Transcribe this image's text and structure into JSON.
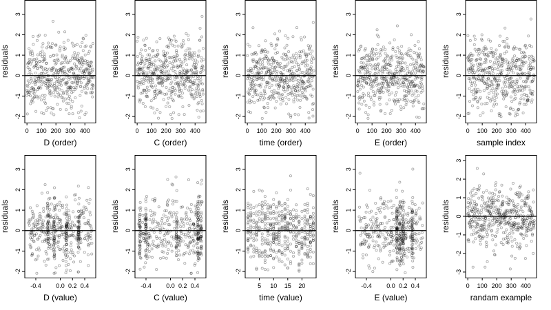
{
  "chart_data": [
    {
      "type": "scatter",
      "xlabel": "D (order)",
      "ylabel": "residuals",
      "xlim": [
        -15,
        475
      ],
      "ylim": [
        -2.3,
        3.7
      ],
      "xticks": [
        0,
        100,
        200,
        300,
        400
      ],
      "xtick_labels": [
        "0",
        "100",
        "200",
        "300",
        "400"
      ],
      "yticks": [
        -2,
        -1,
        0,
        1,
        2,
        3
      ],
      "ytick_labels": [
        "-2",
        "-1",
        "0",
        "1",
        "2",
        "3"
      ],
      "reference_line": 0,
      "n_points": 470,
      "point_seed": 11,
      "point_style": "open-circle",
      "pattern": "uniform"
    },
    {
      "type": "scatter",
      "xlabel": "C (order)",
      "ylabel": "residuals",
      "xlim": [
        -15,
        475
      ],
      "ylim": [
        -2.3,
        3.7
      ],
      "xticks": [
        0,
        100,
        200,
        300,
        400
      ],
      "xtick_labels": [
        "0",
        "100",
        "200",
        "300",
        "400"
      ],
      "yticks": [
        -2,
        -1,
        0,
        1,
        2,
        3
      ],
      "ytick_labels": [
        "-2",
        "-1",
        "0",
        "1",
        "2",
        "3"
      ],
      "reference_line": 0,
      "n_points": 470,
      "point_seed": 23,
      "point_style": "open-circle",
      "pattern": "uniform"
    },
    {
      "type": "scatter",
      "xlabel": "time (order)",
      "ylabel": "residuals",
      "xlim": [
        -15,
        475
      ],
      "ylim": [
        -2.3,
        3.7
      ],
      "xticks": [
        0,
        100,
        200,
        300,
        400
      ],
      "xtick_labels": [
        "0",
        "100",
        "200",
        "300",
        "400"
      ],
      "yticks": [
        -2,
        -1,
        0,
        1,
        2,
        3
      ],
      "ytick_labels": [
        "-2",
        "-1",
        "0",
        "1",
        "2",
        "3"
      ],
      "reference_line": 0,
      "n_points": 470,
      "point_seed": 37,
      "point_style": "open-circle",
      "pattern": "uniform"
    },
    {
      "type": "scatter",
      "xlabel": "E (order)",
      "ylabel": "residuals",
      "xlim": [
        -15,
        475
      ],
      "ylim": [
        -2.3,
        3.7
      ],
      "xticks": [
        0,
        100,
        200,
        300,
        400
      ],
      "xtick_labels": [
        "0",
        "100",
        "200",
        "300",
        "400"
      ],
      "yticks": [
        -2,
        -1,
        0,
        1,
        2,
        3
      ],
      "ytick_labels": [
        "-2",
        "-1",
        "0",
        "1",
        "2",
        "3"
      ],
      "reference_line": 0,
      "n_points": 470,
      "point_seed": 41,
      "point_style": "open-circle",
      "pattern": "uniform"
    },
    {
      "type": "scatter",
      "xlabel": "sample index",
      "ylabel": "residuals",
      "xlim": [
        -15,
        475
      ],
      "ylim": [
        -2.3,
        3.7
      ],
      "xticks": [
        0,
        100,
        200,
        300,
        400
      ],
      "xtick_labels": [
        "0",
        "100",
        "200",
        "300",
        "400"
      ],
      "yticks": [
        -2,
        -1,
        0,
        1,
        2,
        3
      ],
      "ytick_labels": [
        "-2",
        "-1",
        "0",
        "1",
        "2",
        "3"
      ],
      "reference_line": 0,
      "n_points": 470,
      "point_seed": 53,
      "point_style": "open-circle",
      "pattern": "uniform"
    },
    {
      "type": "scatter",
      "xlabel": "D (value)",
      "ylabel": "residuals",
      "xlim": [
        -0.58,
        0.58
      ],
      "ylim": [
        -2.3,
        3.7
      ],
      "xticks": [
        -0.4,
        0,
        0.2,
        0.4
      ],
      "xtick_labels": [
        "-0.4",
        "0.0",
        "0.2",
        "0.4"
      ],
      "yticks": [
        -2,
        -1,
        0,
        1,
        2,
        3
      ],
      "ytick_labels": [
        "-2",
        "-1",
        "0",
        "1",
        "2",
        "3"
      ],
      "reference_line": 0,
      "n_points": 470,
      "point_seed": 61,
      "point_style": "open-circle",
      "pattern": "uniform-with-columns",
      "x_columns": [
        -0.2,
        -0.1,
        0.1,
        0.3
      ]
    },
    {
      "type": "scatter",
      "xlabel": "C (value)",
      "ylabel": "residuals",
      "xlim": [
        -0.58,
        0.58
      ],
      "ylim": [
        -2.3,
        3.7
      ],
      "xticks": [
        -0.4,
        0,
        0.2,
        0.4
      ],
      "xtick_labels": [
        "-0.4",
        "0.0",
        "0.2",
        "0.4"
      ],
      "yticks": [
        -2,
        -1,
        0,
        1,
        2,
        3
      ],
      "ytick_labels": [
        "-2",
        "-1",
        "0",
        "1",
        "2",
        "3"
      ],
      "reference_line": 0,
      "n_points": 470,
      "point_seed": 71,
      "point_style": "open-circle",
      "pattern": "uniform-with-columns",
      "x_columns": [
        -0.5,
        -0.4,
        0.1,
        0.45,
        0.5
      ]
    },
    {
      "type": "scatter",
      "xlabel": "time (value)",
      "ylabel": "residuals",
      "xlim": [
        0,
        25
      ],
      "ylim": [
        -2.3,
        3.7
      ],
      "xticks": [
        5,
        10,
        15,
        20
      ],
      "xtick_labels": [
        "5",
        "10",
        "15",
        "20"
      ],
      "yticks": [
        -2,
        -1,
        0,
        1,
        2,
        3
      ],
      "ytick_labels": [
        "-2",
        "-1",
        "0",
        "1",
        "2",
        "3"
      ],
      "reference_line": 0,
      "n_points": 470,
      "point_seed": 83,
      "point_style": "open-circle",
      "pattern": "discrete-x",
      "x_discrete": [
        1,
        2,
        3,
        4,
        5,
        6,
        7,
        8,
        9,
        10,
        11,
        12,
        13,
        14,
        15,
        16,
        17,
        18,
        19,
        20,
        21,
        22,
        23,
        24
      ]
    },
    {
      "type": "scatter",
      "xlabel": "E (value)",
      "ylabel": "residuals",
      "xlim": [
        -0.58,
        0.58
      ],
      "ylim": [
        -2.3,
        3.7
      ],
      "xticks": [
        -0.4,
        0,
        0.2,
        0.4
      ],
      "xtick_labels": [
        "-0.4",
        "0.0",
        "0.2",
        "0.4"
      ],
      "yticks": [
        -2,
        -1,
        0,
        1,
        2,
        3
      ],
      "ytick_labels": [
        "-2",
        "-1",
        "0",
        "1",
        "2",
        "3"
      ],
      "reference_line": 0,
      "n_points": 470,
      "point_seed": 97,
      "point_style": "open-circle",
      "pattern": "uniform-with-columns",
      "x_columns": [
        0.1,
        0.15,
        0.2,
        0.35
      ]
    },
    {
      "type": "scatter",
      "xlabel": "randam example",
      "ylabel": "residuals",
      "xlim": [
        -15,
        475
      ],
      "ylim": [
        -3.3,
        3.3
      ],
      "xticks": [
        0,
        100,
        200,
        300,
        400
      ],
      "xtick_labels": [
        "0",
        "100",
        "200",
        "300",
        "400"
      ],
      "yticks": [
        -3,
        -2,
        -1,
        0,
        1,
        2,
        3
      ],
      "ytick_labels": [
        "-3",
        "-2",
        "-1",
        "0",
        "1",
        "2",
        "3"
      ],
      "reference_line": 0,
      "n_points": 470,
      "point_seed": 109,
      "point_style": "open-circle",
      "pattern": "uniform"
    }
  ]
}
